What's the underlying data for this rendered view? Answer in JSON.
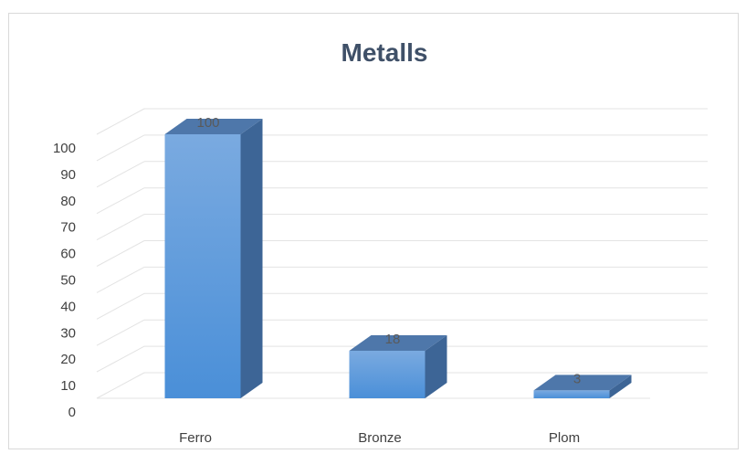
{
  "chart_data": {
    "type": "bar",
    "title": "Metalls",
    "categories": [
      "Ferro",
      "Bronze",
      "Plom"
    ],
    "values": [
      100,
      18,
      3
    ],
    "data_labels": [
      "100",
      "18",
      "3"
    ],
    "ylim": [
      0,
      100
    ],
    "yticks": [
      "0",
      "10",
      "20",
      "30",
      "40",
      "50",
      "60",
      "70",
      "80",
      "90",
      "100"
    ],
    "xlabel": "",
    "ylabel": "",
    "grid": true,
    "legend": "none",
    "style": "3d-column",
    "colors": {
      "bar_front_top": "#7aaae0",
      "bar_front_bottom": "#4a8fd8",
      "bar_top": "#4e77aa",
      "bar_side": "#3d6596",
      "grid": "#e3e3e3",
      "title": "#3f5068"
    }
  }
}
